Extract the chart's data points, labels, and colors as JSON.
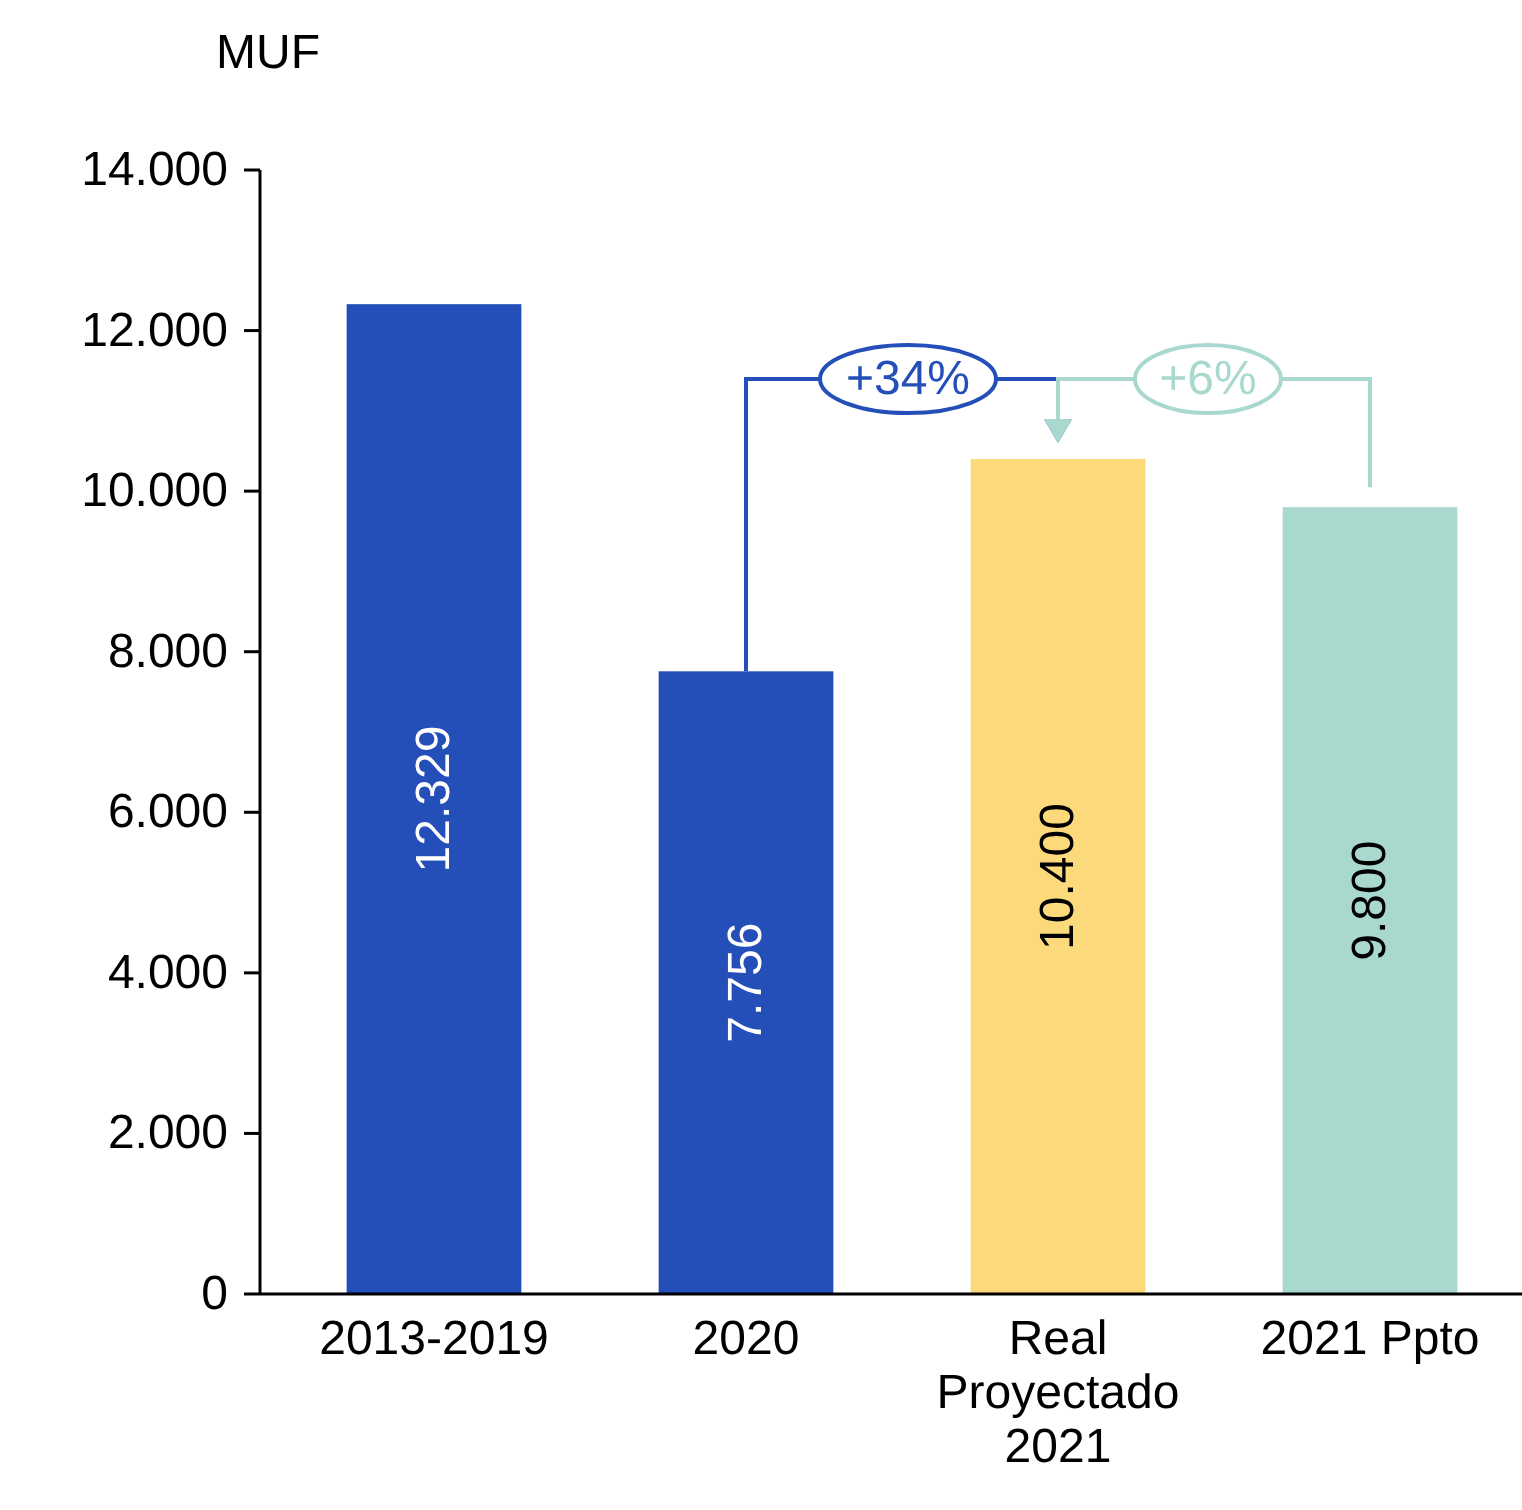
{
  "chart_data": {
    "type": "bar",
    "ylabel": "MUF",
    "categories": [
      "2013-2019",
      "2020",
      "Real Proyectado 2021",
      "2021 Ppto"
    ],
    "values": [
      12329,
      7756,
      10400,
      9800
    ],
    "colors": [
      "#254fb8",
      "#254fb8",
      "#fcd97a",
      "#a8d8ce"
    ],
    "value_labels": [
      "12.329",
      "7.756",
      "10.400",
      "9.800"
    ],
    "ylim": [
      0,
      14000
    ],
    "yticks": [
      {
        "value": 0,
        "label": "0"
      },
      {
        "value": 2000,
        "label": "2.000"
      },
      {
        "value": 4000,
        "label": "4.000"
      },
      {
        "value": 6000,
        "label": "6.000"
      },
      {
        "value": 8000,
        "label": "8.000"
      },
      {
        "value": 10000,
        "label": "10.000"
      },
      {
        "value": 12000,
        "label": "12.000"
      },
      {
        "value": 14000,
        "label": "14.000"
      }
    ],
    "annotations": [
      "+34%",
      "+6%"
    ],
    "grid": false
  }
}
